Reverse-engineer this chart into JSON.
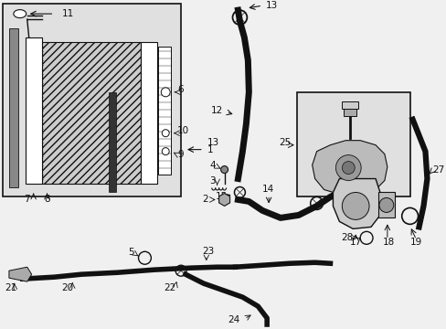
{
  "bg_color": "#f0f0f0",
  "line_color": "#111111",
  "box_bg": "#e0e0e0",
  "white": "#ffffff",
  "fig_width": 4.89,
  "fig_height": 3.6,
  "dpi": 100
}
